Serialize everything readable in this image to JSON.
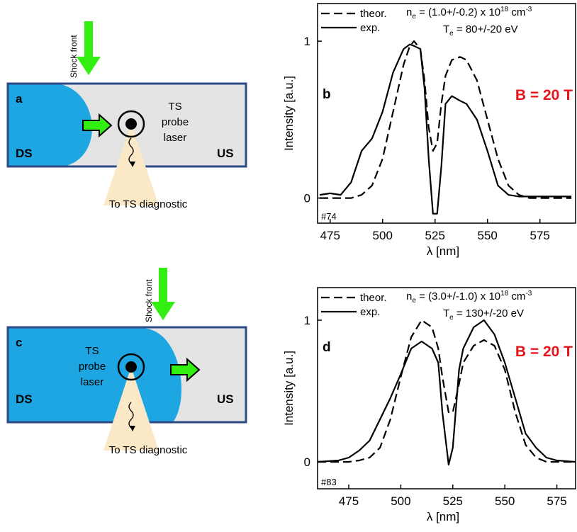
{
  "diagrams": [
    {
      "panel": "a",
      "shock_label": "Shock front",
      "left_label": "DS",
      "right_label": "US",
      "probe_label": [
        "TS",
        "probe",
        "laser"
      ],
      "diagnostic_label": "To TS diagnostic"
    },
    {
      "panel": "c",
      "shock_label": "Shock front",
      "left_label": "DS",
      "right_label": "US",
      "probe_label": [
        "TS",
        "probe",
        "laser"
      ],
      "diagnostic_label": "To TS diagnostic"
    }
  ],
  "chart_data": [
    {
      "type": "line",
      "panel": "b",
      "shot": "#74",
      "field_label": "B = 20 T",
      "x_label": "λ [nm]",
      "y_label": "Intensity [a.u.]",
      "density": {
        "symbol": "n",
        "sub": "e",
        "text": " = (1.0+/-0.2) x 10",
        "exp": "18",
        "unit": " cm",
        "unit_exp": "-3"
      },
      "temperature": {
        "symbol": "T",
        "sub": "e",
        "text": " = 80+/-20 eV"
      },
      "xlim": [
        469,
        592
      ],
      "ylim": [
        -0.16,
        1.24
      ],
      "xticks": [
        475,
        500,
        525,
        550,
        575
      ],
      "yticks": [
        0,
        1
      ],
      "x": [
        470,
        475,
        480,
        485,
        490,
        495,
        500,
        505,
        510,
        513,
        515,
        518,
        520,
        522,
        524,
        526,
        528,
        530,
        533,
        537,
        540,
        545,
        550,
        555,
        560,
        565,
        570,
        580,
        590
      ],
      "series": [
        {
          "name": "theor.",
          "color": "#000000",
          "dashed": true,
          "values": [
            0,
            0,
            0,
            0,
            0.02,
            0.08,
            0.25,
            0.55,
            0.85,
            0.97,
            1.0,
            0.95,
            0.75,
            0.45,
            0.3,
            0.35,
            0.6,
            0.78,
            0.88,
            0.9,
            0.88,
            0.75,
            0.5,
            0.25,
            0.08,
            0.02,
            0,
            0,
            0
          ]
        },
        {
          "name": "exp.",
          "color": "#000000",
          "dashed": false,
          "values": [
            0.02,
            0.03,
            0.02,
            0.1,
            0.3,
            0.38,
            0.55,
            0.8,
            0.95,
            0.98,
            0.97,
            0.95,
            0.7,
            0.25,
            -0.1,
            -0.1,
            0.2,
            0.6,
            0.65,
            0.62,
            0.6,
            0.5,
            0.3,
            0.08,
            0.02,
            0.01,
            0.01,
            0.01,
            0.01
          ]
        }
      ]
    },
    {
      "type": "line",
      "panel": "d",
      "shot": "#83",
      "field_label": "B = 20 T",
      "x_label": "λ [nm]",
      "y_label": "Intensity [a.u.]",
      "density": {
        "symbol": "n",
        "sub": "e",
        "text": " = (3.0+/-1.0) x 10",
        "exp": "18",
        "unit": " cm",
        "unit_exp": "-3"
      },
      "temperature": {
        "symbol": "T",
        "sub": "e",
        "text": " = 130+/-20 eV"
      },
      "xlim": [
        460,
        584
      ],
      "ylim": [
        -0.19,
        1.23
      ],
      "xticks": [
        475,
        500,
        525,
        550,
        575
      ],
      "yticks": [
        0,
        1
      ],
      "x": [
        460,
        470,
        475,
        480,
        485,
        490,
        495,
        500,
        505,
        510,
        515,
        518,
        520,
        523,
        525,
        528,
        530,
        535,
        540,
        545,
        550,
        555,
        560,
        565,
        570,
        575,
        584
      ],
      "series": [
        {
          "name": "theor.",
          "color": "#000000",
          "dashed": true,
          "values": [
            0,
            0,
            0,
            0.01,
            0.03,
            0.1,
            0.3,
            0.6,
            0.88,
            1.0,
            0.95,
            0.8,
            0.6,
            0.35,
            0.35,
            0.55,
            0.7,
            0.82,
            0.86,
            0.82,
            0.65,
            0.35,
            0.12,
            0.03,
            0,
            0,
            0
          ]
        },
        {
          "name": "exp.",
          "color": "#000000",
          "dashed": false,
          "values": [
            0,
            0.01,
            0.03,
            0.08,
            0.15,
            0.3,
            0.45,
            0.62,
            0.8,
            0.85,
            0.8,
            0.7,
            0.35,
            -0.02,
            0.1,
            0.65,
            0.8,
            0.95,
            1.0,
            0.9,
            0.7,
            0.45,
            0.2,
            0.1,
            0.03,
            0.01,
            0
          ]
        }
      ]
    }
  ]
}
